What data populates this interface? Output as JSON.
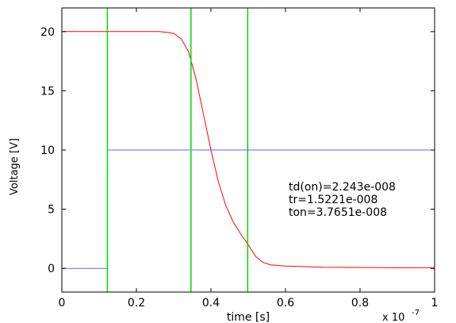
{
  "chart_data": {
    "type": "line",
    "xlabel": "time [s]",
    "ylabel": "Voltage [V]",
    "x_multiplier": "x 10",
    "x_multiplier_exp": "-7",
    "xlim": [
      0,
      1
    ],
    "ylim": [
      -2,
      22
    ],
    "x_ticks": [
      0,
      0.2,
      0.4,
      0.6,
      0.8,
      1
    ],
    "x_tick_labels": [
      "0",
      "0.2",
      "0.4",
      "0.6",
      "0.8",
      "1"
    ],
    "y_ticks": [
      0,
      5,
      10,
      15,
      20
    ],
    "y_tick_labels": [
      "0",
      "5",
      "10",
      "15",
      "20"
    ],
    "grid": false,
    "series": [
      {
        "color": "#ff0000",
        "x": [
          0,
          0.26,
          0.28,
          0.3,
          0.32,
          0.34,
          0.36,
          0.38,
          0.4,
          0.42,
          0.44,
          0.46,
          0.48,
          0.5,
          0.52,
          0.54,
          0.56,
          0.6,
          0.7,
          0.8,
          0.9,
          1.0
        ],
        "y": [
          20,
          20,
          19.95,
          19.85,
          19.4,
          18.3,
          16.0,
          13.0,
          10.0,
          7.3,
          5.3,
          3.9,
          2.9,
          2.0,
          1.0,
          0.5,
          0.3,
          0.2,
          0.1,
          0.08,
          0.05,
          0.05
        ]
      },
      {
        "color": "#6666ff",
        "x": [
          0,
          0.1221,
          0.1221,
          1.0
        ],
        "y": [
          0,
          0,
          10,
          10
        ]
      }
    ],
    "vertical_markers": {
      "color": "#00dd00",
      "x": [
        0.1221,
        0.3464,
        0.4986
      ]
    },
    "annotation": [
      "td(on)=2.243e-008",
      "tr=1.5221e-008",
      "ton=3.7651e-008"
    ]
  }
}
